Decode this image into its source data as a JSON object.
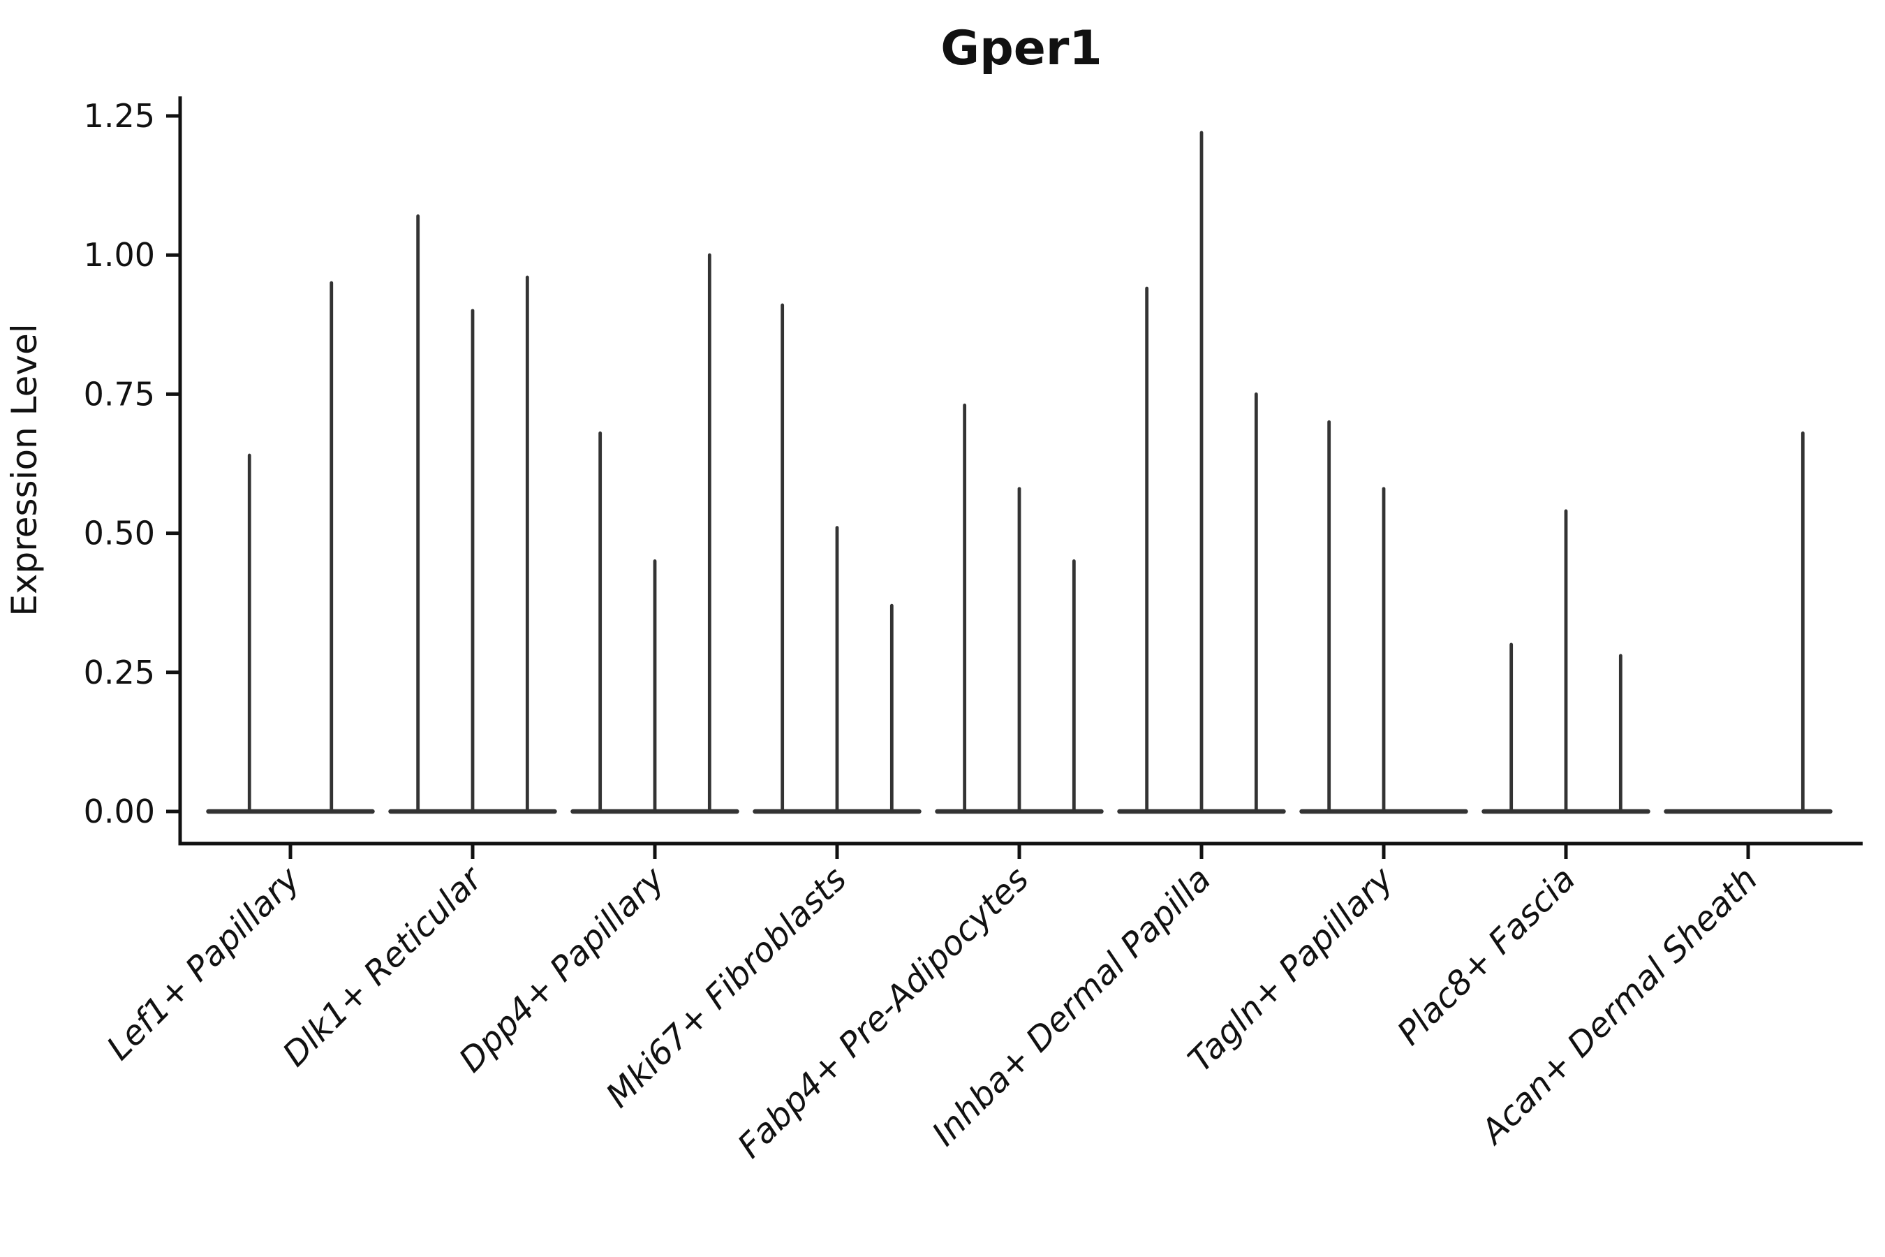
{
  "chart_data": {
    "type": "violin",
    "title": "Gper1",
    "xlabel": "",
    "ylabel": "Expression Level",
    "ylim": [
      0,
      1.25
    ],
    "yticks": [
      {
        "value": 0.0,
        "label": "0.00"
      },
      {
        "value": 0.25,
        "label": "0.25"
      },
      {
        "value": 0.5,
        "label": "0.50"
      },
      {
        "value": 0.75,
        "label": "0.75"
      },
      {
        "value": 1.0,
        "label": "1.00"
      },
      {
        "value": 1.25,
        "label": "1.25"
      }
    ],
    "grid": false,
    "legend": null,
    "x_label_rotation_deg": 45,
    "categories": [
      {
        "label": "Lef1+ Papillary",
        "violin_spike_heights": [
          0.64,
          0.95
        ]
      },
      {
        "label": "Dlk1+ Reticular",
        "violin_spike_heights": [
          1.07,
          0.9,
          0.96
        ]
      },
      {
        "label": "Dpp4+ Papillary",
        "violin_spike_heights": [
          0.68,
          0.45,
          1.0
        ]
      },
      {
        "label": "Mki67+ Fibroblasts",
        "violin_spike_heights": [
          0.91,
          0.51,
          0.37
        ]
      },
      {
        "label": "Fabp4+ Pre-Adipocytes",
        "violin_spike_heights": [
          0.73,
          0.58,
          0.45
        ]
      },
      {
        "label": "Inhba+ Dermal Papilla",
        "violin_spike_heights": [
          0.94,
          1.22,
          0.75
        ]
      },
      {
        "label": "Tagln+ Papillary",
        "violin_spike_heights": [
          0.7,
          0.58,
          0
        ]
      },
      {
        "label": "Plac8+ Fascia",
        "violin_spike_heights": [
          0.3,
          0.54,
          0.28
        ]
      },
      {
        "label": "Acan+ Dermal Sheath",
        "violin_spike_heights": [
          0,
          0,
          0.68
        ]
      }
    ],
    "description": "Violin plot of Gper1 expression level per fibroblast subtype; each category contains 2-3 dodged sub-violins collapsed to thin vertical spikes rising from a shared baseline at 0. Heights listed are the top of each spike in expression-level units; 0 means a flat (all-zero) sub-violin."
  },
  "style": {
    "background": "#ffffff",
    "violin_color": "#333333",
    "axis_color": "#111111",
    "text_color": "#111111"
  }
}
